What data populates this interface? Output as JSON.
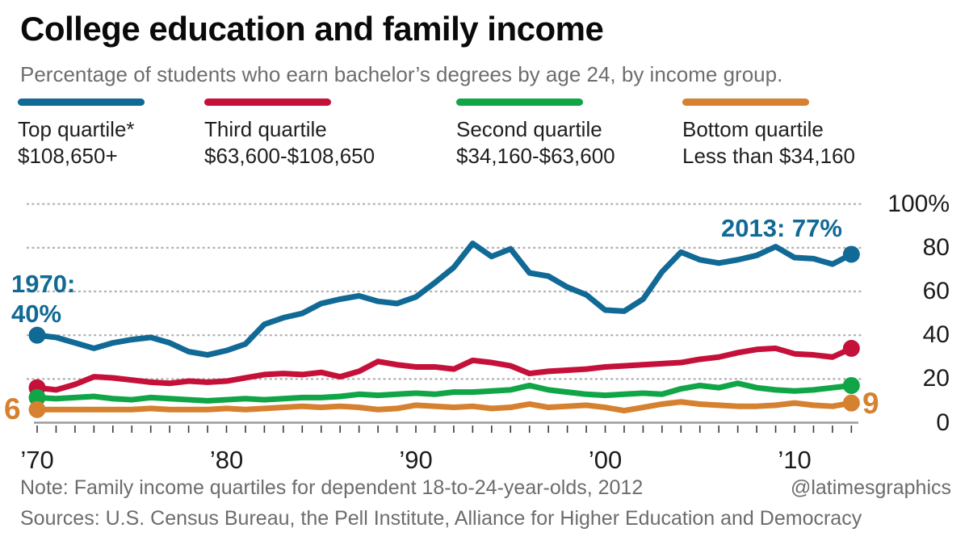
{
  "title": "College education and family income",
  "subtitle": "Percentage of students who earn bachelor’s degrees by age 24, by income group.",
  "legend": [
    {
      "name": "Top quartile*",
      "range": "$108,650+",
      "color": "#116996"
    },
    {
      "name": "Third quartile",
      "range": "$63,600-$108,650",
      "color": "#c5113a"
    },
    {
      "name": "Second quartile",
      "range": "$34,160-$63,600",
      "color": "#10a546"
    },
    {
      "name": "Bottom quartile",
      "range": "Less than $34,160",
      "color": "#d6812f"
    }
  ],
  "annotations": {
    "start_line1": "1970:",
    "start_line2": "40%",
    "end": "2013: 77%",
    "bottom_start": "6",
    "bottom_end": "9",
    "blue_text_color": "#116996",
    "orange_text_color": "#d6812f"
  },
  "footer": {
    "note": "Note: Family income quartiles for dependent 18-to-24-year-olds, 2012",
    "handle": "@latimesgraphics",
    "sources": "Sources: U.S. Census Bureau, the Pell Institute, Alliance for Higher Education and Democracy"
  },
  "chart_data": {
    "type": "line",
    "x_years": [
      1970,
      2013
    ],
    "x_ticks": [
      {
        "label": "’70",
        "year": 1970
      },
      {
        "label": "’80",
        "year": 1980
      },
      {
        "label": "’90",
        "year": 1990
      },
      {
        "label": "’00",
        "year": 2000
      },
      {
        "label": "’10",
        "year": 2010
      }
    ],
    "y_ticks": [
      {
        "label": "100%",
        "value": 100
      },
      {
        "label": "80",
        "value": 80
      },
      {
        "label": "60",
        "value": 60
      },
      {
        "label": "40",
        "value": 40
      },
      {
        "label": "20",
        "value": 20
      },
      {
        "label": "0",
        "value": 0
      }
    ],
    "ylim": [
      0,
      100
    ],
    "grid": "horizontal dotted",
    "legend_position": "top",
    "series": [
      {
        "key": "top-quartile",
        "name": "Top quartile",
        "color": "#116996",
        "values": [
          40,
          39,
          36.5,
          34,
          36.5,
          38,
          39,
          36.5,
          32.5,
          31,
          33,
          36,
          45,
          48,
          50,
          54.5,
          56.5,
          58,
          55.5,
          54.5,
          57.5,
          64,
          71,
          82,
          76,
          79.5,
          68.5,
          67,
          62,
          58.5,
          51.5,
          51,
          56.5,
          69,
          78,
          74.5,
          73,
          74.5,
          76.5,
          80.5,
          75.5,
          75,
          72.5,
          77
        ]
      },
      {
        "key": "third-quartile",
        "name": "Third quartile",
        "color": "#c5113a",
        "values": [
          16,
          15,
          17.5,
          21,
          20.5,
          19.5,
          18.5,
          18,
          19,
          18.5,
          19,
          20.5,
          22,
          22.5,
          22,
          23,
          21,
          23.5,
          28,
          26.5,
          25.5,
          25.5,
          24.5,
          28.5,
          27.5,
          26,
          22.5,
          23.5,
          24,
          24.5,
          25.5,
          26,
          26.5,
          27,
          27.5,
          29,
          30,
          32,
          33.5,
          34,
          31.5,
          31,
          30,
          34
        ]
      },
      {
        "key": "second-quartile",
        "name": "Second quartile",
        "color": "#10a546",
        "values": [
          11.5,
          11,
          11.5,
          12,
          11,
          10.5,
          11.5,
          11,
          10.5,
          10,
          10.5,
          11,
          10.5,
          11,
          11.5,
          11.5,
          12,
          13,
          12.5,
          13,
          13.5,
          13,
          14,
          14,
          14.5,
          15,
          17,
          15,
          14,
          13,
          12.5,
          13,
          13.5,
          13,
          15.5,
          17,
          16,
          18,
          16,
          15,
          14.5,
          15,
          16,
          17
        ]
      },
      {
        "key": "bottom-quartile",
        "name": "Bottom quartile",
        "color": "#d6812f",
        "values": [
          6,
          6,
          6,
          6,
          6,
          6,
          6.5,
          6,
          6,
          6,
          6.5,
          6,
          6.5,
          7,
          7.5,
          7,
          7.5,
          7,
          6,
          6.5,
          8,
          7.5,
          7,
          7.5,
          6.5,
          7,
          8.5,
          7,
          7.5,
          8,
          7,
          5.5,
          7,
          8.5,
          9.5,
          8.5,
          8,
          7.5,
          7.5,
          8,
          9,
          8,
          7.5,
          9
        ]
      }
    ]
  }
}
